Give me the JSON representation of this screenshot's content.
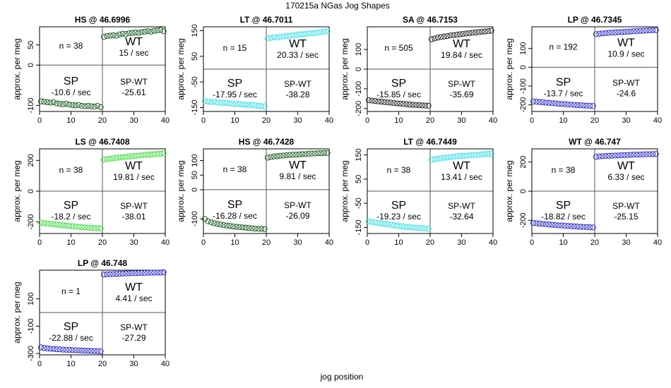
{
  "figure": {
    "title": "170215a    NGas Jog Shapes",
    "xlabel": "jog position"
  },
  "chart_data": [
    {
      "type": "scatter",
      "title": "HS @ 46.6996",
      "ylabel": "approx. per meg",
      "color": "#1b5e20",
      "xlim": [
        0,
        40
      ],
      "ylim": [
        -115,
        95
      ],
      "yticks": [
        50,
        0,
        -100
      ],
      "xticks": [
        0,
        10,
        20,
        30,
        40
      ],
      "count_label": "n = 38",
      "wt_label": "WT",
      "wt_rate": "15 / sec",
      "sp_label": "SP",
      "sp_rate": "-10.6 / sec",
      "spwt_label": "SP-WT",
      "spwt_value": "-25.61",
      "x": [
        0,
        1,
        2,
        3,
        4,
        5,
        6,
        7,
        8,
        9,
        10,
        11,
        12,
        13,
        14,
        15,
        16,
        17,
        18,
        19,
        20,
        21,
        22,
        23,
        24,
        25,
        26,
        27,
        28,
        29,
        30,
        31,
        32,
        33,
        34,
        35,
        36,
        37,
        38,
        39
      ],
      "y": [
        -90,
        -91,
        -92,
        -93,
        -92,
        -95,
        -96,
        -97,
        -96,
        -98,
        -99,
        -100,
        -99,
        -101,
        -102,
        -101,
        -102,
        -103,
        -101,
        -104,
        70,
        72,
        73,
        74,
        73,
        76,
        78,
        77,
        79,
        80,
        81,
        80,
        82,
        83,
        84,
        83,
        85,
        86,
        87,
        84
      ]
    },
    {
      "type": "scatter",
      "title": "LT @ 46.7011",
      "ylabel": "approx. per meg",
      "color": "#33e0e8",
      "xlim": [
        0,
        40
      ],
      "ylim": [
        -165,
        165
      ],
      "yticks": [
        150,
        50,
        -50,
        -150
      ],
      "xticks": [
        0,
        10,
        20,
        30,
        40
      ],
      "count_label": "n = 15",
      "wt_label": "WT",
      "wt_rate": "20.33 / sec",
      "sp_label": "SP",
      "sp_rate": "-17.95 / sec",
      "spwt_label": "SP-WT",
      "spwt_value": "-38.28",
      "x": [
        0,
        1,
        2,
        3,
        4,
        5,
        6,
        7,
        8,
        9,
        10,
        11,
        12,
        13,
        14,
        15,
        16,
        17,
        18,
        19,
        20,
        21,
        22,
        23,
        24,
        25,
        26,
        27,
        28,
        29,
        30,
        31,
        32,
        33,
        34,
        35,
        36,
        37,
        38,
        39
      ],
      "y": [
        -125,
        -126,
        -128,
        -127,
        -130,
        -131,
        -132,
        -131,
        -134,
        -135,
        -136,
        -135,
        -138,
        -139,
        -140,
        -139,
        -142,
        -143,
        -144,
        -145,
        120,
        122,
        124,
        123,
        126,
        128,
        129,
        130,
        132,
        133,
        135,
        136,
        137,
        139,
        140,
        141,
        143,
        144,
        146,
        148
      ]
    },
    {
      "type": "scatter",
      "title": "SA @ 46.7153",
      "ylabel": "approx. per meg",
      "color": "#222222",
      "xlim": [
        0,
        40
      ],
      "ylim": [
        -215,
        215
      ],
      "yticks": [
        100,
        0,
        -100,
        -200
      ],
      "xticks": [
        0,
        10,
        20,
        30,
        40
      ],
      "count_label": "n = 505",
      "wt_label": "WT",
      "wt_rate": "19.84 / sec",
      "sp_label": "SP",
      "sp_rate": "-15.85 / sec",
      "spwt_label": "SP-WT",
      "spwt_value": "-35.69",
      "x": [
        0,
        1,
        2,
        3,
        4,
        5,
        6,
        7,
        8,
        9,
        10,
        11,
        12,
        13,
        14,
        15,
        16,
        17,
        18,
        19,
        20,
        21,
        22,
        23,
        24,
        25,
        26,
        27,
        28,
        29,
        30,
        31,
        32,
        33,
        34,
        35,
        36,
        37,
        38,
        39
      ],
      "y": [
        -158,
        -160,
        -162,
        -164,
        -165,
        -167,
        -169,
        -170,
        -172,
        -174,
        -175,
        -177,
        -178,
        -180,
        -181,
        -182,
        -183,
        -184,
        -185,
        -186,
        152,
        156,
        160,
        163,
        166,
        168,
        171,
        173,
        175,
        177,
        179,
        181,
        183,
        185,
        186,
        188,
        190,
        191,
        193,
        195
      ]
    },
    {
      "type": "scatter",
      "title": "LP @ 46.7345",
      "ylabel": "approx. per meg",
      "color": "#2b2bc8",
      "xlim": [
        0,
        40
      ],
      "ylim": [
        -235,
        215
      ],
      "yticks": [
        100,
        0,
        -100,
        -200
      ],
      "xticks": [
        0,
        10,
        20,
        30,
        40
      ],
      "count_label": "n = 192",
      "wt_label": "WT",
      "wt_rate": "10.9 / sec",
      "sp_label": "SP",
      "sp_rate": "-13.7 / sec",
      "spwt_label": "SP-WT",
      "spwt_value": "-24.6",
      "x": [
        0,
        1,
        2,
        3,
        4,
        5,
        6,
        7,
        8,
        9,
        10,
        11,
        12,
        13,
        14,
        15,
        16,
        17,
        18,
        19,
        20,
        21,
        22,
        23,
        24,
        25,
        26,
        27,
        28,
        29,
        30,
        31,
        32,
        33,
        34,
        35,
        36,
        37,
        38,
        39
      ],
      "y": [
        -182,
        -183,
        -185,
        -186,
        -188,
        -189,
        -191,
        -192,
        -194,
        -195,
        -196,
        -198,
        -199,
        -200,
        -201,
        -202,
        -203,
        -204,
        -205,
        -206,
        176,
        178,
        180,
        181,
        183,
        184,
        185,
        186,
        187,
        188,
        189,
        190,
        191,
        192,
        193,
        194,
        195,
        196,
        197,
        197
      ]
    },
    {
      "type": "scatter",
      "title": "LS @ 46.7408",
      "ylabel": "approx. per meg",
      "color": "#3ddc3d",
      "xlim": [
        0,
        40
      ],
      "ylim": [
        -275,
        275
      ],
      "yticks": [
        200,
        0,
        -200
      ],
      "xticks": [
        0,
        10,
        20,
        30,
        40
      ],
      "count_label": "n = 38",
      "wt_label": "WT",
      "wt_rate": "19.81 / sec",
      "sp_label": "SP",
      "sp_rate": "-18.2 / sec",
      "spwt_label": "SP-WT",
      "spwt_value": "-38.01",
      "x": [
        0,
        1,
        2,
        3,
        4,
        5,
        6,
        7,
        8,
        9,
        10,
        11,
        12,
        13,
        14,
        15,
        16,
        17,
        18,
        19,
        20,
        21,
        22,
        23,
        24,
        25,
        26,
        27,
        28,
        29,
        30,
        31,
        32,
        33,
        34,
        35,
        36,
        37,
        38,
        39
      ],
      "y": [
        -205,
        -208,
        -210,
        -213,
        -215,
        -217,
        -220,
        -222,
        -224,
        -226,
        -228,
        -230,
        -232,
        -234,
        -235,
        -237,
        -238,
        -240,
        -241,
        -242,
        205,
        208,
        211,
        214,
        216,
        219,
        221,
        223,
        225,
        227,
        229,
        231,
        233,
        235,
        237,
        238,
        240,
        242,
        243,
        245
      ]
    },
    {
      "type": "scatter",
      "title": "HS @ 46.7428",
      "ylabel": "approx. per meg",
      "color": "#1b5e20",
      "xlim": [
        0,
        40
      ],
      "ylim": [
        -150,
        140
      ],
      "yticks": [
        100,
        50,
        0,
        -100
      ],
      "xticks": [
        0,
        10,
        20,
        30,
        40
      ],
      "count_label": "n = 38",
      "wt_label": "WT",
      "wt_rate": "9.81 / sec",
      "sp_label": "SP",
      "sp_rate": "-16.28 / sec",
      "spwt_label": "SP-WT",
      "spwt_value": "-26.09",
      "x": [
        0,
        1,
        2,
        3,
        4,
        5,
        6,
        7,
        8,
        9,
        10,
        11,
        12,
        13,
        14,
        15,
        16,
        17,
        18,
        19,
        20,
        21,
        22,
        23,
        24,
        25,
        26,
        27,
        28,
        29,
        30,
        31,
        32,
        33,
        34,
        35,
        36,
        37,
        38,
        39
      ],
      "y": [
        -100,
        -108,
        -112,
        -115,
        -117,
        -119,
        -121,
        -123,
        -124,
        -126,
        -127,
        -128,
        -129,
        -130,
        -131,
        -132,
        -133,
        -134,
        -134,
        -135,
        110,
        112,
        114,
        115,
        116,
        117,
        118,
        119,
        120,
        120,
        121,
        122,
        122,
        123,
        124,
        124,
        125,
        125,
        126,
        126
      ]
    },
    {
      "type": "scatter",
      "title": "LT @ 46.7449",
      "ylabel": "approx. per meg",
      "color": "#33e0e8",
      "xlim": [
        0,
        40
      ],
      "ylim": [
        -175,
        175
      ],
      "yticks": [
        150,
        50,
        -50,
        -150
      ],
      "xticks": [
        0,
        10,
        20,
        30,
        40
      ],
      "count_label": "n = 38",
      "wt_label": "WT",
      "wt_rate": "13.41 / sec",
      "sp_label": "SP",
      "sp_rate": "-19.23 / sec",
      "spwt_label": "SP-WT",
      "spwt_value": "-32.64",
      "x": [
        0,
        1,
        2,
        3,
        4,
        5,
        6,
        7,
        8,
        9,
        10,
        11,
        12,
        13,
        14,
        15,
        16,
        17,
        18,
        19,
        20,
        21,
        22,
        23,
        24,
        25,
        26,
        27,
        28,
        29,
        30,
        31,
        32,
        33,
        34,
        35,
        36,
        37,
        38,
        39
      ],
      "y": [
        -125,
        -127,
        -129,
        -131,
        -133,
        -135,
        -137,
        -139,
        -141,
        -143,
        -145,
        -146,
        -148,
        -149,
        -150,
        -151,
        -152,
        -153,
        -154,
        -155,
        130,
        132,
        134,
        136,
        138,
        139,
        141,
        142,
        144,
        145,
        146,
        147,
        148,
        149,
        150,
        151,
        152,
        153,
        154,
        155
      ]
    },
    {
      "type": "scatter",
      "title": "WT @ 46.747",
      "ylabel": "approx. per meg",
      "color": "#2b2bc8",
      "xlim": [
        0,
        40
      ],
      "ylim": [
        -290,
        290
      ],
      "yticks": [
        200,
        0,
        -200
      ],
      "xticks": [
        0,
        10,
        20,
        30,
        40
      ],
      "count_label": "n = 38",
      "wt_label": "WT",
      "wt_rate": "6.33 / sec",
      "sp_label": "SP",
      "sp_rate": "-18.82 / sec",
      "spwt_label": "SP-WT",
      "spwt_value": "-25.15",
      "x": [
        0,
        1,
        2,
        3,
        4,
        5,
        6,
        7,
        8,
        9,
        10,
        11,
        12,
        13,
        14,
        15,
        16,
        17,
        18,
        19,
        20,
        21,
        22,
        23,
        24,
        25,
        26,
        27,
        28,
        29,
        30,
        31,
        32,
        33,
        34,
        35,
        36,
        37,
        38,
        39
      ],
      "y": [
        -218,
        -220,
        -222,
        -224,
        -226,
        -228,
        -230,
        -232,
        -234,
        -235,
        -237,
        -238,
        -240,
        -241,
        -242,
        -244,
        -245,
        -246,
        -247,
        -248,
        236,
        238,
        240,
        241,
        242,
        243,
        244,
        245,
        246,
        247,
        248,
        249,
        250,
        250,
        251,
        252,
        253,
        253,
        254,
        255
      ]
    },
    {
      "type": "scatter",
      "title": "LP @ 46.748",
      "ylabel": "approx. per meg",
      "color": "#2b2bc8",
      "xlim": [
        0,
        40
      ],
      "ylim": [
        -310,
        310
      ],
      "yticks": [
        100,
        -100,
        -300
      ],
      "xticks": [
        0,
        10,
        20,
        30,
        40
      ],
      "count_label": "n = 1",
      "wt_label": "WT",
      "wt_rate": "4.41 / sec",
      "sp_label": "SP",
      "sp_rate": "-22.88 / sec",
      "spwt_label": "SP-WT",
      "spwt_value": "-27.29",
      "x": [
        0,
        1,
        2,
        3,
        4,
        5,
        6,
        7,
        8,
        9,
        10,
        11,
        12,
        13,
        14,
        15,
        16,
        17,
        18,
        19,
        20,
        21,
        22,
        23,
        24,
        25,
        26,
        27,
        28,
        29,
        30,
        31,
        32,
        33,
        34,
        35,
        36,
        37,
        38,
        39
      ],
      "y": [
        -255,
        -260,
        -263,
        -265,
        -267,
        -269,
        -270,
        -272,
        -273,
        -274,
        -275,
        -276,
        -277,
        -278,
        -279,
        -280,
        -281,
        -282,
        -283,
        -284,
        278,
        280,
        281,
        282,
        283,
        284,
        285,
        286,
        287,
        288,
        288,
        289,
        290,
        290,
        291,
        292,
        292,
        293,
        293,
        294
      ]
    }
  ]
}
